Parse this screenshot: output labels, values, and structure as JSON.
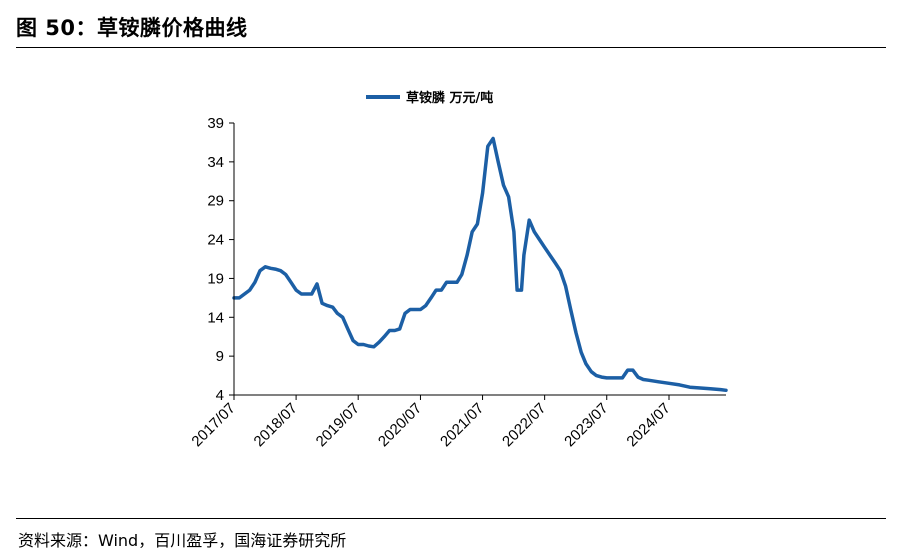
{
  "figure": {
    "title": "图 50：草铵膦价格曲线",
    "source": "资料来源：Wind，百川盈孚，国海证券研究所"
  },
  "colors": {
    "line": "#1C5FA5",
    "axis": "#000000",
    "grid": "#d9d9d9"
  },
  "chart_data": {
    "type": "line",
    "title": "",
    "xlabel": "",
    "ylabel": "",
    "ylim": [
      4,
      39
    ],
    "yticks": [
      4,
      9,
      14,
      19,
      24,
      29,
      34,
      39
    ],
    "grid": false,
    "legend": "top-center",
    "x_range": [
      "2017-07",
      "2025-06"
    ],
    "xtick_labels": [
      "2017/07",
      "2018/07",
      "2019/07",
      "2020/07",
      "2021/07",
      "2022/07",
      "2023/07",
      "2024/07"
    ],
    "series": [
      {
        "name": "草铵膦 万元/吨",
        "points": [
          [
            "2017-07-01",
            16.5
          ],
          [
            "2017-08-01",
            16.5
          ],
          [
            "2017-09-01",
            17.0
          ],
          [
            "2017-10-01",
            17.5
          ],
          [
            "2017-11-01",
            18.5
          ],
          [
            "2017-12-01",
            20.0
          ],
          [
            "2018-01-01",
            20.5
          ],
          [
            "2018-02-01",
            20.3
          ],
          [
            "2018-03-01",
            20.2
          ],
          [
            "2018-04-01",
            20.0
          ],
          [
            "2018-05-01",
            19.5
          ],
          [
            "2018-06-01",
            18.5
          ],
          [
            "2018-07-01",
            17.5
          ],
          [
            "2018-08-01",
            17.0
          ],
          [
            "2018-09-01",
            17.0
          ],
          [
            "2018-10-01",
            17.0
          ],
          [
            "2018-11-01",
            18.3
          ],
          [
            "2018-12-01",
            15.8
          ],
          [
            "2019-01-01",
            15.5
          ],
          [
            "2019-02-01",
            15.3
          ],
          [
            "2019-03-01",
            14.5
          ],
          [
            "2019-04-01",
            14.0
          ],
          [
            "2019-05-01",
            12.5
          ],
          [
            "2019-06-01",
            11.0
          ],
          [
            "2019-07-01",
            10.5
          ],
          [
            "2019-08-01",
            10.5
          ],
          [
            "2019-09-01",
            10.3
          ],
          [
            "2019-10-01",
            10.2
          ],
          [
            "2019-11-01",
            10.8
          ],
          [
            "2019-12-01",
            11.5
          ],
          [
            "2020-01-01",
            12.3
          ],
          [
            "2020-02-01",
            12.3
          ],
          [
            "2020-03-01",
            12.5
          ],
          [
            "2020-04-01",
            14.5
          ],
          [
            "2020-05-01",
            15.0
          ],
          [
            "2020-06-01",
            15.0
          ],
          [
            "2020-07-01",
            15.0
          ],
          [
            "2020-08-01",
            15.5
          ],
          [
            "2020-09-01",
            16.5
          ],
          [
            "2020-10-01",
            17.5
          ],
          [
            "2020-11-01",
            17.5
          ],
          [
            "2020-12-01",
            18.5
          ],
          [
            "2021-01-01",
            18.5
          ],
          [
            "2021-02-01",
            18.5
          ],
          [
            "2021-03-01",
            19.5
          ],
          [
            "2021-04-01",
            22.0
          ],
          [
            "2021-05-01",
            25.0
          ],
          [
            "2021-06-01",
            26.0
          ],
          [
            "2021-07-01",
            30.0
          ],
          [
            "2021-08-01",
            36.0
          ],
          [
            "2021-09-01",
            37.0
          ],
          [
            "2021-10-01",
            34.0
          ],
          [
            "2021-11-01",
            31.0
          ],
          [
            "2021-12-01",
            29.5
          ],
          [
            "2022-01-01",
            25.0
          ],
          [
            "2022-01-20",
            17.5
          ],
          [
            "2022-02-15",
            17.5
          ],
          [
            "2022-03-01",
            22.0
          ],
          [
            "2022-04-01",
            26.5
          ],
          [
            "2022-05-01",
            25.0
          ],
          [
            "2022-06-01",
            24.0
          ],
          [
            "2022-07-01",
            23.0
          ],
          [
            "2022-08-01",
            22.0
          ],
          [
            "2022-09-01",
            21.0
          ],
          [
            "2022-10-01",
            20.0
          ],
          [
            "2022-11-01",
            18.0
          ],
          [
            "2022-12-01",
            15.0
          ],
          [
            "2023-01-01",
            12.0
          ],
          [
            "2023-02-01",
            9.5
          ],
          [
            "2023-03-01",
            8.0
          ],
          [
            "2023-04-01",
            7.0
          ],
          [
            "2023-05-01",
            6.5
          ],
          [
            "2023-06-01",
            6.3
          ],
          [
            "2023-07-01",
            6.2
          ],
          [
            "2023-08-01",
            6.2
          ],
          [
            "2023-09-01",
            6.2
          ],
          [
            "2023-10-01",
            6.2
          ],
          [
            "2023-11-01",
            7.2
          ],
          [
            "2023-12-01",
            7.2
          ],
          [
            "2024-01-01",
            6.3
          ],
          [
            "2024-02-01",
            6.0
          ],
          [
            "2024-03-01",
            5.9
          ],
          [
            "2024-05-01",
            5.7
          ],
          [
            "2024-07-01",
            5.5
          ],
          [
            "2024-09-01",
            5.3
          ],
          [
            "2024-11-01",
            5.0
          ],
          [
            "2025-01-01",
            4.9
          ],
          [
            "2025-03-01",
            4.8
          ],
          [
            "2025-05-01",
            4.7
          ],
          [
            "2025-06-01",
            4.6
          ]
        ]
      }
    ]
  }
}
